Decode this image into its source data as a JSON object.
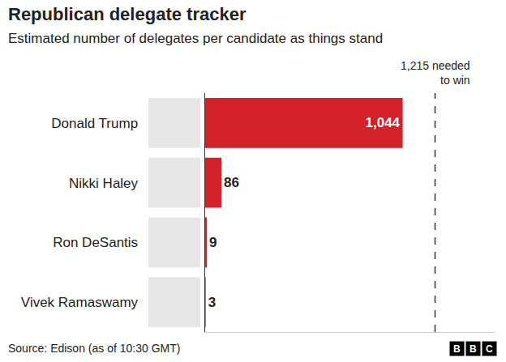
{
  "chart_data": {
    "type": "bar",
    "orientation": "horizontal",
    "title": "Republican delegate tracker",
    "subtitle": "Estimated number of delegates per candidate as things stand",
    "categories": [
      "Donald Trump",
      "Nikki Haley",
      "Ron DeSantis",
      "Vivek Ramaswamy"
    ],
    "values": [
      1044,
      86,
      9,
      3
    ],
    "value_labels": [
      "1,044",
      "86",
      "9",
      "3"
    ],
    "data_labels": true,
    "color": "#d42027",
    "xlim": [
      0,
      1530
    ],
    "tick_labels": "y",
    "grid": false,
    "reference_line": {
      "value": 1215,
      "label": "1,215 needed to win"
    },
    "source": "Source: Edison (as of 10:30 GMT)",
    "logo": "BBC"
  }
}
